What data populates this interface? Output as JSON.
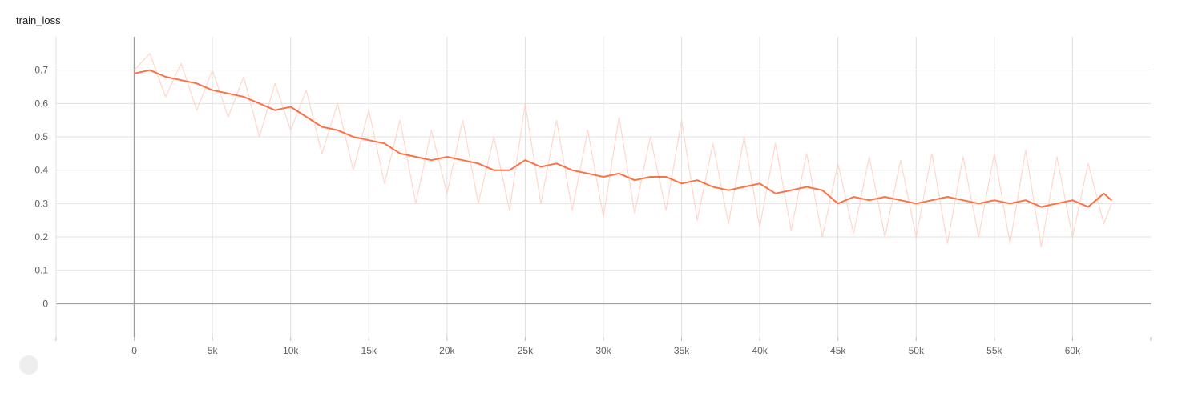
{
  "chart_data": {
    "type": "line",
    "title": "train_loss",
    "xlabel": "",
    "ylabel": "",
    "xlim": [
      -5000,
      65000
    ],
    "ylim": [
      -0.1,
      0.8
    ],
    "x_ticks": [
      0,
      5000,
      10000,
      15000,
      20000,
      25000,
      30000,
      35000,
      40000,
      45000,
      50000,
      55000,
      60000
    ],
    "x_tick_labels": [
      "0",
      "5k",
      "10k",
      "15k",
      "20k",
      "25k",
      "30k",
      "35k",
      "40k",
      "45k",
      "50k",
      "55k",
      "60k"
    ],
    "y_ticks": [
      0,
      0.1,
      0.2,
      0.3,
      0.4,
      0.5,
      0.6,
      0.7
    ],
    "y_tick_labels": [
      "0",
      "0.1",
      "0.2",
      "0.3",
      "0.4",
      "0.5",
      "0.6",
      "0.7"
    ],
    "grid": true,
    "colors": {
      "smoothed": "#ff7043",
      "raw": "#ffcdbf",
      "grid": "#e0e0e0",
      "axis": "#9e9e9e"
    },
    "series": [
      {
        "role": "smoothed",
        "x": [
          0,
          1000,
          2000,
          3000,
          4000,
          5000,
          6000,
          7000,
          8000,
          9000,
          10000,
          11000,
          12000,
          13000,
          14000,
          15000,
          16000,
          17000,
          18000,
          19000,
          20000,
          21000,
          22000,
          23000,
          24000,
          25000,
          26000,
          27000,
          28000,
          29000,
          30000,
          31000,
          32000,
          33000,
          34000,
          35000,
          36000,
          37000,
          38000,
          39000,
          40000,
          41000,
          42000,
          43000,
          44000,
          45000,
          46000,
          47000,
          48000,
          49000,
          50000,
          51000,
          52000,
          53000,
          54000,
          55000,
          56000,
          57000,
          58000,
          59000,
          60000,
          61000,
          62000,
          62500
        ],
        "y": [
          0.69,
          0.7,
          0.68,
          0.67,
          0.66,
          0.64,
          0.63,
          0.62,
          0.6,
          0.58,
          0.59,
          0.56,
          0.53,
          0.52,
          0.5,
          0.49,
          0.48,
          0.45,
          0.44,
          0.43,
          0.44,
          0.43,
          0.42,
          0.4,
          0.4,
          0.43,
          0.41,
          0.42,
          0.4,
          0.39,
          0.38,
          0.39,
          0.37,
          0.38,
          0.38,
          0.36,
          0.37,
          0.35,
          0.34,
          0.35,
          0.36,
          0.33,
          0.34,
          0.35,
          0.34,
          0.3,
          0.32,
          0.31,
          0.32,
          0.31,
          0.3,
          0.31,
          0.32,
          0.31,
          0.3,
          0.31,
          0.3,
          0.31,
          0.29,
          0.3,
          0.31,
          0.29,
          0.33,
          0.31
        ]
      },
      {
        "role": "raw",
        "x": [
          0,
          1000,
          2000,
          3000,
          4000,
          5000,
          6000,
          7000,
          8000,
          9000,
          10000,
          11000,
          12000,
          13000,
          14000,
          15000,
          16000,
          17000,
          18000,
          19000,
          20000,
          21000,
          22000,
          23000,
          24000,
          25000,
          26000,
          27000,
          28000,
          29000,
          30000,
          31000,
          32000,
          33000,
          34000,
          35000,
          36000,
          37000,
          38000,
          39000,
          40000,
          41000,
          42000,
          43000,
          44000,
          45000,
          46000,
          47000,
          48000,
          49000,
          50000,
          51000,
          52000,
          53000,
          54000,
          55000,
          56000,
          57000,
          58000,
          59000,
          60000,
          61000,
          62000,
          62500
        ],
        "y": [
          0.7,
          0.75,
          0.62,
          0.72,
          0.58,
          0.7,
          0.56,
          0.68,
          0.5,
          0.66,
          0.52,
          0.64,
          0.45,
          0.6,
          0.4,
          0.58,
          0.36,
          0.55,
          0.3,
          0.52,
          0.33,
          0.55,
          0.3,
          0.5,
          0.28,
          0.6,
          0.3,
          0.55,
          0.28,
          0.52,
          0.26,
          0.56,
          0.27,
          0.5,
          0.28,
          0.55,
          0.25,
          0.48,
          0.24,
          0.5,
          0.23,
          0.48,
          0.22,
          0.45,
          0.2,
          0.42,
          0.21,
          0.44,
          0.2,
          0.43,
          0.2,
          0.45,
          0.18,
          0.44,
          0.2,
          0.45,
          0.18,
          0.46,
          0.17,
          0.44,
          0.2,
          0.42,
          0.24,
          0.3
        ]
      }
    ]
  }
}
